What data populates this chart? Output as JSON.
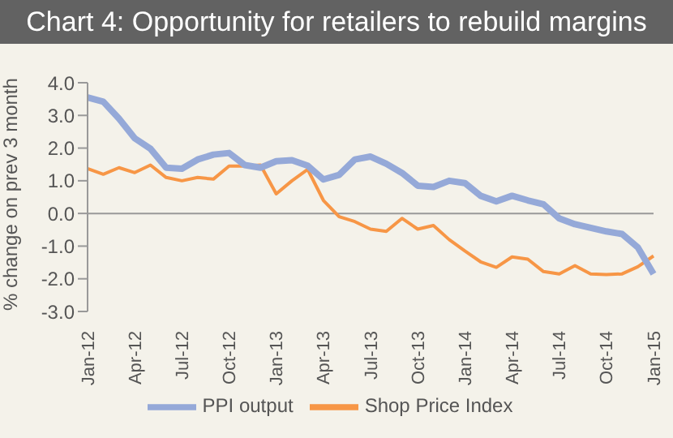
{
  "chart_data": {
    "type": "line",
    "title": "Chart 4: Opportunity for retailers to rebuild margins",
    "ylabel": "% change on prev 3 month",
    "categories": [
      "Jan-12",
      null,
      null,
      "Apr-12",
      null,
      null,
      "Jul-12",
      null,
      null,
      "Oct-12",
      null,
      null,
      "Jan-13",
      null,
      null,
      "Apr-13",
      null,
      null,
      "Jul-13",
      null,
      null,
      "Oct-13",
      null,
      null,
      "Jan-14",
      null,
      null,
      "Apr-14",
      null,
      null,
      "Jul-14",
      null,
      null,
      "Oct-14",
      null,
      null,
      "Jan-15"
    ],
    "series": [
      {
        "name": "Shop Price Index",
        "color": "#f79646",
        "values": [
          1.37,
          1.2,
          1.4,
          1.25,
          1.48,
          1.1,
          1.0,
          1.1,
          1.05,
          1.45,
          1.45,
          1.48,
          0.6,
          1.0,
          1.35,
          0.4,
          -0.1,
          -0.25,
          -0.48,
          -0.55,
          -0.15,
          -0.48,
          -0.37,
          -0.8,
          -1.15,
          -1.48,
          -1.65,
          -1.33,
          -1.4,
          -1.78,
          -1.85,
          -1.6,
          -1.85,
          -1.87,
          -1.85,
          -1.63,
          -1.3
        ]
      },
      {
        "name": "PPI output",
        "color": "#95a9d8",
        "values": [
          3.55,
          3.42,
          2.9,
          2.3,
          1.98,
          1.4,
          1.37,
          1.65,
          1.8,
          1.85,
          1.48,
          1.4,
          1.6,
          1.63,
          1.46,
          1.04,
          1.18,
          1.65,
          1.74,
          1.52,
          1.24,
          0.85,
          0.81,
          1.0,
          0.93,
          0.54,
          0.37,
          0.54,
          0.4,
          0.28,
          -0.15,
          -0.33,
          -0.44,
          -0.55,
          -0.63,
          -1.04,
          -1.85
        ]
      }
    ],
    "ylim": [
      -3,
      4
    ],
    "yticks": [
      {
        "value": -3,
        "label": "-3.0"
      },
      {
        "value": -2,
        "label": "-2.0"
      },
      {
        "value": -1,
        "label": "-1.0"
      },
      {
        "value": 0,
        "label": "0.0"
      },
      {
        "value": 1,
        "label": "1.0"
      },
      {
        "value": 2,
        "label": "2.0"
      },
      {
        "value": 3,
        "label": "3.0"
      },
      {
        "value": 4,
        "label": "4.0"
      }
    ],
    "ref_lines": [
      {
        "axis": "y",
        "value": 0,
        "color": "#999999"
      }
    ],
    "legend": "bottom",
    "marker": "none",
    "line_style": "solid"
  }
}
